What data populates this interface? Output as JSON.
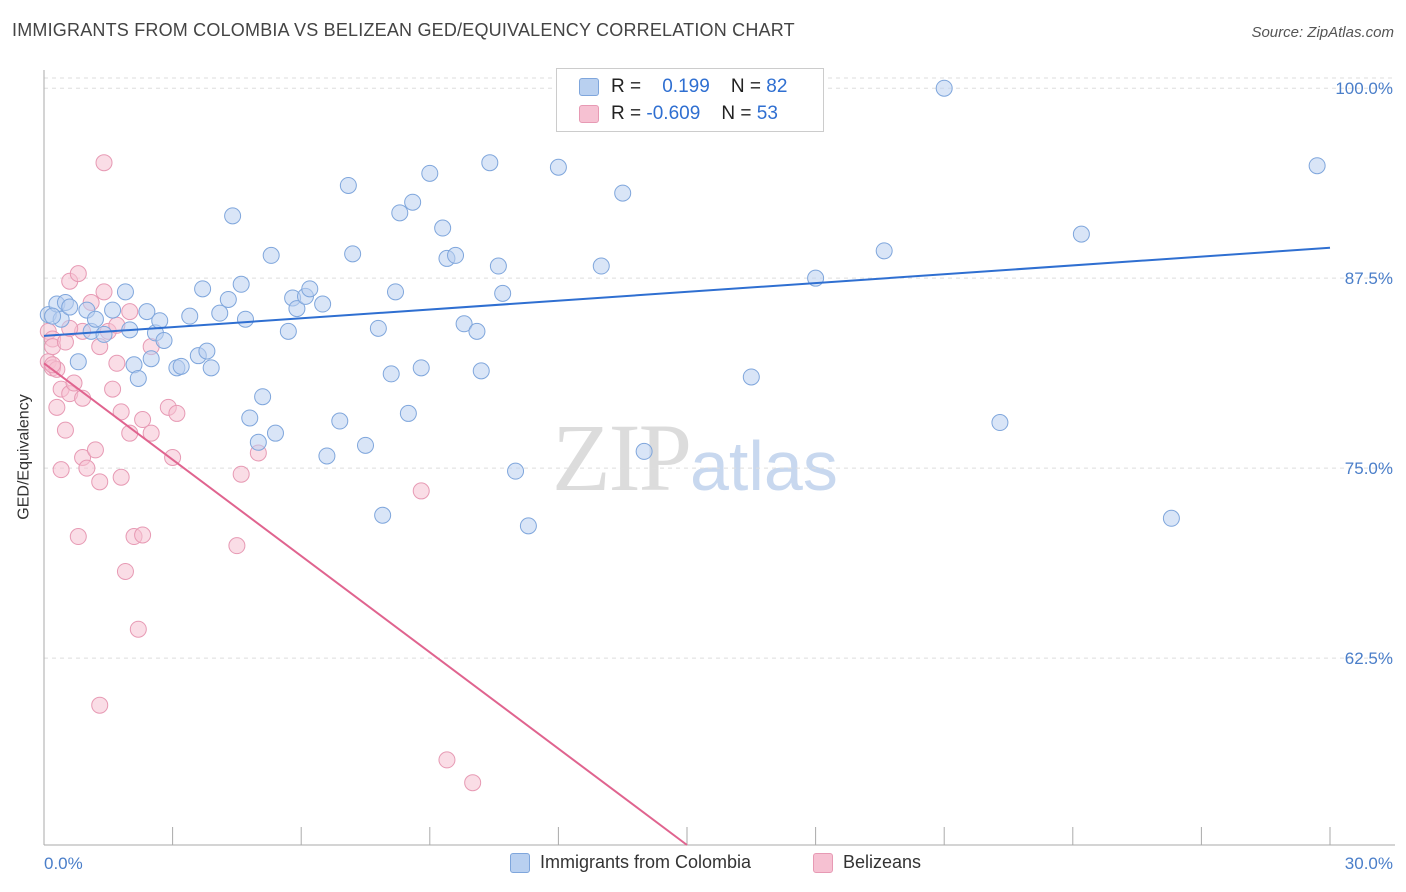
{
  "title": "IMMIGRANTS FROM COLOMBIA VS BELIZEAN GED/EQUIVALENCY CORRELATION CHART",
  "source": "Source: ZipAtlas.com",
  "watermark": {
    "zip": "ZIP",
    "atlas": "atlas"
  },
  "legend": {
    "r_label": "R =",
    "n_label": "N =",
    "series1": {
      "r": "0.199",
      "n": "82"
    },
    "series2": {
      "r": "-0.609",
      "n": "53"
    }
  },
  "colors": {
    "blue": "#2f6fd1",
    "blue_fill": "#b9d0f0",
    "pink": "#e0648f",
    "pink_fill": "#f6c1d2",
    "grid": "#dddddd",
    "tick": "#4a7ec9"
  },
  "chart_data": {
    "type": "scatter",
    "title": "IMMIGRANTS FROM COLOMBIA VS BELIZEAN GED/EQUIVALENCY CORRELATION CHART",
    "xlabel": "",
    "ylabel": "GED/Equivalency",
    "xlim": [
      0,
      30
    ],
    "ylim": [
      50.2,
      101.2
    ],
    "x_tick_labels": [
      "0.0%",
      "30.0%"
    ],
    "y_ticks": [
      100,
      87.5,
      75,
      62.5
    ],
    "y_tick_labels": [
      "100.0%",
      "87.5%",
      "75.0%",
      "62.5%"
    ],
    "grid": true,
    "legend_position": "top-center",
    "series": [
      {
        "name": "Immigrants from Colombia",
        "color": "#2f6fd1",
        "trend": {
          "x": [
            0,
            30
          ],
          "y": [
            83.7,
            89.5
          ]
        },
        "points": [
          [
            0.1,
            85.1
          ],
          [
            0.3,
            85.8
          ],
          [
            0.4,
            84.8
          ],
          [
            0.5,
            85.9
          ],
          [
            0.6,
            85.6
          ],
          [
            0.8,
            82.0
          ],
          [
            1.0,
            85.4
          ],
          [
            1.1,
            84.0
          ],
          [
            1.2,
            84.8
          ],
          [
            1.4,
            83.8
          ],
          [
            1.6,
            85.4
          ],
          [
            1.9,
            86.6
          ],
          [
            2.0,
            84.1
          ],
          [
            2.1,
            81.8
          ],
          [
            2.2,
            80.9
          ],
          [
            2.4,
            85.3
          ],
          [
            2.5,
            82.2
          ],
          [
            2.6,
            83.9
          ],
          [
            2.7,
            84.7
          ],
          [
            2.8,
            83.4
          ],
          [
            3.1,
            81.6
          ],
          [
            3.2,
            81.7
          ],
          [
            3.4,
            85.0
          ],
          [
            3.6,
            82.4
          ],
          [
            3.7,
            86.8
          ],
          [
            3.8,
            82.7
          ],
          [
            3.9,
            81.6
          ],
          [
            4.1,
            85.2
          ],
          [
            4.3,
            86.1
          ],
          [
            4.4,
            91.6
          ],
          [
            4.6,
            87.1
          ],
          [
            4.7,
            84.8
          ],
          [
            4.8,
            78.3
          ],
          [
            5.0,
            76.7
          ],
          [
            5.1,
            79.7
          ],
          [
            5.3,
            89.0
          ],
          [
            5.4,
            77.3
          ],
          [
            5.7,
            84.0
          ],
          [
            5.8,
            86.2
          ],
          [
            5.9,
            85.5
          ],
          [
            6.1,
            86.3
          ],
          [
            6.2,
            86.8
          ],
          [
            6.5,
            85.8
          ],
          [
            6.6,
            75.8
          ],
          [
            6.9,
            78.1
          ],
          [
            7.1,
            93.6
          ],
          [
            7.2,
            89.1
          ],
          [
            7.5,
            76.5
          ],
          [
            7.8,
            84.2
          ],
          [
            7.9,
            71.9
          ],
          [
            8.1,
            81.2
          ],
          [
            8.2,
            86.6
          ],
          [
            8.3,
            91.8
          ],
          [
            8.5,
            78.6
          ],
          [
            8.6,
            92.5
          ],
          [
            8.8,
            81.6
          ],
          [
            9.0,
            94.4
          ],
          [
            9.3,
            90.8
          ],
          [
            9.4,
            88.8
          ],
          [
            9.6,
            89.0
          ],
          [
            9.8,
            84.5
          ],
          [
            10.1,
            84.0
          ],
          [
            10.2,
            81.4
          ],
          [
            10.4,
            95.1
          ],
          [
            10.6,
            88.3
          ],
          [
            10.7,
            86.5
          ],
          [
            11.0,
            74.8
          ],
          [
            11.3,
            71.2
          ],
          [
            12.0,
            94.8
          ],
          [
            13.0,
            88.3
          ],
          [
            13.5,
            93.1
          ],
          [
            14.0,
            76.1
          ],
          [
            14.9,
            100.0
          ],
          [
            15.0,
            100.0
          ],
          [
            16.5,
            81.0
          ],
          [
            18.0,
            87.5
          ],
          [
            19.6,
            89.3
          ],
          [
            21.0,
            100.0
          ],
          [
            22.3,
            78.0
          ],
          [
            24.2,
            90.4
          ],
          [
            26.3,
            71.7
          ],
          [
            29.7,
            94.9
          ],
          [
            0.2,
            85.0
          ]
        ]
      },
      {
        "name": "Belizeans",
        "color": "#e0648f",
        "trend": {
          "x": [
            0,
            15.0
          ],
          "y": [
            81.9,
            50.2
          ]
        },
        "points": [
          [
            0.1,
            84.0
          ],
          [
            0.1,
            82.0
          ],
          [
            0.2,
            83.5
          ],
          [
            0.2,
            83.0
          ],
          [
            0.2,
            81.6
          ],
          [
            0.3,
            81.5
          ],
          [
            0.3,
            79.0
          ],
          [
            0.4,
            80.2
          ],
          [
            0.4,
            74.9
          ],
          [
            0.5,
            77.5
          ],
          [
            0.6,
            79.9
          ],
          [
            0.6,
            87.3
          ],
          [
            0.7,
            80.6
          ],
          [
            0.8,
            87.8
          ],
          [
            0.8,
            70.5
          ],
          [
            0.9,
            75.7
          ],
          [
            0.9,
            79.6
          ],
          [
            1.0,
            75.0
          ],
          [
            1.1,
            85.9
          ],
          [
            1.2,
            76.2
          ],
          [
            1.3,
            74.1
          ],
          [
            1.3,
            83.0
          ],
          [
            1.4,
            86.6
          ],
          [
            1.4,
            95.1
          ],
          [
            1.5,
            84.0
          ],
          [
            1.6,
            80.2
          ],
          [
            1.7,
            81.9
          ],
          [
            1.7,
            84.4
          ],
          [
            1.8,
            78.7
          ],
          [
            1.8,
            74.4
          ],
          [
            1.9,
            68.2
          ],
          [
            2.0,
            85.3
          ],
          [
            2.0,
            77.3
          ],
          [
            2.1,
            70.5
          ],
          [
            2.2,
            64.4
          ],
          [
            2.3,
            70.6
          ],
          [
            2.3,
            78.2
          ],
          [
            2.5,
            77.3
          ],
          [
            2.5,
            83.0
          ],
          [
            2.9,
            79.0
          ],
          [
            3.0,
            75.7
          ],
          [
            3.1,
            78.6
          ],
          [
            4.5,
            69.9
          ],
          [
            4.6,
            74.6
          ],
          [
            5.0,
            76.0
          ],
          [
            8.8,
            73.5
          ],
          [
            9.4,
            55.8
          ],
          [
            10.0,
            54.3
          ],
          [
            1.3,
            59.4
          ],
          [
            0.5,
            83.3
          ],
          [
            0.9,
            84.0
          ],
          [
            0.2,
            81.8
          ],
          [
            0.6,
            84.2
          ]
        ]
      }
    ]
  }
}
